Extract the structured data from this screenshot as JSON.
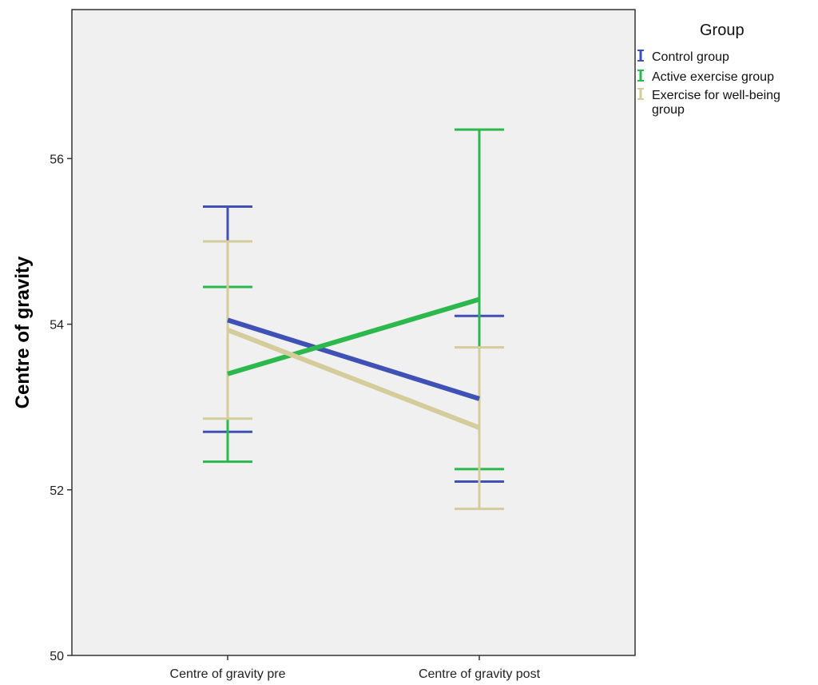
{
  "chart_data": {
    "type": "line",
    "title": "",
    "xlabel": "",
    "ylabel": "Centre of gravity",
    "categories": [
      "Centre of gravity pre",
      "Centre of gravity post"
    ],
    "ylim": [
      50,
      58
    ],
    "yticks": [
      50,
      52,
      54,
      56
    ],
    "grid": false,
    "legend_title": "Group",
    "legend_position": "top-right, outside plot",
    "series": [
      {
        "name": "Control group",
        "color": "#3f51b5",
        "values": [
          54.05,
          53.1
        ],
        "error_low": [
          52.7,
          52.1
        ],
        "error_high": [
          55.42,
          54.1
        ]
      },
      {
        "name": "Active exercise group",
        "color": "#2db84d",
        "values": [
          53.4,
          54.3
        ],
        "error_low": [
          52.34,
          52.25
        ],
        "error_high": [
          54.45,
          56.35
        ]
      },
      {
        "name": "Exercise for well-being",
        "name_line2": "group",
        "color": "#d4cc9a",
        "values": [
          53.93,
          52.75
        ],
        "error_low": [
          52.86,
          51.77
        ],
        "error_high": [
          55.0,
          53.72
        ]
      }
    ]
  }
}
